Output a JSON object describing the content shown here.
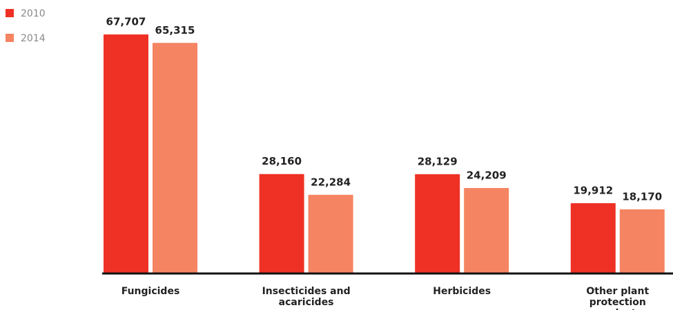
{
  "chart_data": {
    "type": "bar",
    "categories": [
      "Fungicides",
      "Insecticides and acaricides",
      "Herbicides",
      "Other plant protection products"
    ],
    "series": [
      {
        "name": "2010",
        "color": "#ee3124",
        "values": [
          67707,
          28160,
          28129,
          19912
        ],
        "value_labels": [
          "67,707",
          "28,160",
          "28,129",
          "19,912"
        ]
      },
      {
        "name": "2014",
        "color": "#f58462",
        "values": [
          65315,
          22284,
          24209,
          18170
        ],
        "value_labels": [
          "65,315",
          "22,284",
          "24,209",
          "18,170"
        ]
      }
    ]
  }
}
